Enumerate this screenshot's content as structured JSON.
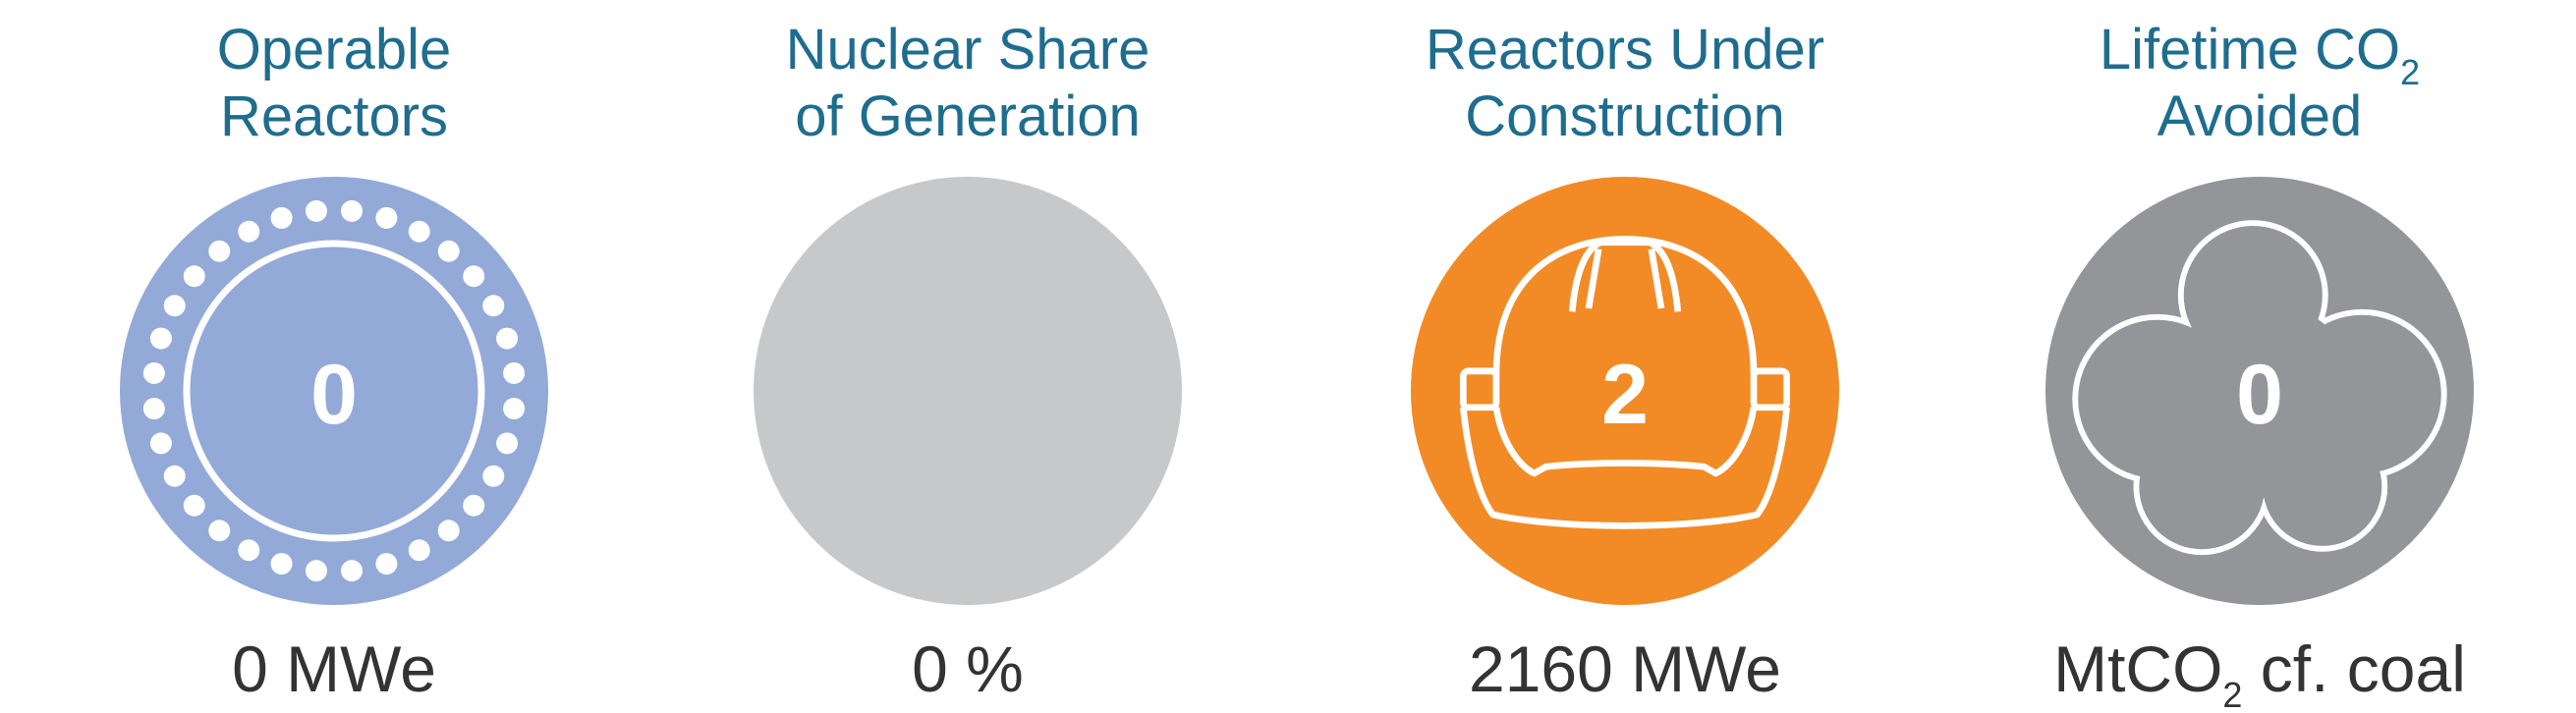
{
  "panels": [
    {
      "title_lines": [
        "Operable",
        "Reactors"
      ],
      "value": "0",
      "caption": "0 MWe"
    },
    {
      "title_lines": [
        "Nuclear Share",
        "of Generation"
      ],
      "caption": "0 %"
    },
    {
      "title_lines": [
        "Reactors Under",
        "Construction"
      ],
      "value": "2",
      "caption": "2160 MWe"
    },
    {
      "title_lines": [
        "Lifetime CO",
        "Avoided"
      ],
      "title_sub": "2",
      "value": "0",
      "caption": "MtCO",
      "caption_sub": "2",
      "caption_tail": " cf. coal"
    }
  ]
}
